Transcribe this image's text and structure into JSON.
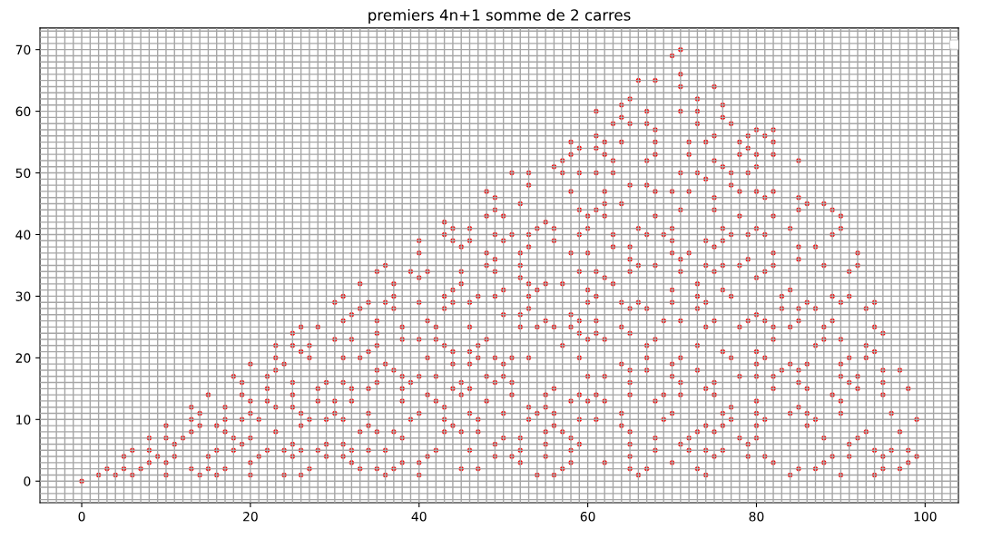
{
  "chart_data": {
    "type": "scatter",
    "title": "premiers 4n+1 somme de 2 carres",
    "xlim": [
      -4.95,
      103.95
    ],
    "ylim": [
      -3.5,
      73.5
    ],
    "xticks": [
      0,
      20,
      40,
      60,
      80,
      100
    ],
    "yticks": [
      0,
      10,
      20,
      30,
      40,
      50,
      60,
      70
    ],
    "grid": true,
    "marker": "circle",
    "series": [
      {
        "color": "#ff0000",
        "x": [
          0,
          2,
          3,
          4,
          5,
          5,
          6,
          6,
          7,
          8,
          8,
          8,
          9,
          10,
          10,
          10,
          10,
          11,
          11,
          12,
          13,
          13,
          13,
          13,
          14,
          14,
          14,
          15,
          15,
          15,
          16,
          16,
          16,
          17,
          17,
          17,
          17,
          18,
          18,
          18,
          19,
          19,
          19,
          19,
          20,
          20,
          20,
          20,
          20,
          20,
          21,
          21,
          22,
          22,
          22,
          22,
          23,
          23,
          23,
          23,
          23,
          24,
          24,
          24,
          25,
          25,
          25,
          25,
          25,
          25,
          25,
          26,
          26,
          26,
          26,
          26,
          26,
          27,
          27,
          27,
          27,
          28,
          28,
          28,
          28,
          29,
          29,
          29,
          29,
          30,
          30,
          30,
          30,
          31,
          31,
          31,
          31,
          31,
          31,
          31,
          32,
          32,
          32,
          32,
          32,
          32,
          33,
          33,
          33,
          33,
          33,
          34,
          34,
          34,
          34,
          34,
          34,
          35,
          35,
          35,
          35,
          35,
          35,
          35,
          35,
          36,
          36,
          36,
          36,
          36,
          37,
          37,
          37,
          37,
          37,
          37,
          38,
          38,
          38,
          38,
          38,
          38,
          38,
          39,
          39,
          39,
          40,
          40,
          40,
          40,
          40,
          40,
          40,
          40,
          40,
          41,
          41,
          41,
          41,
          41,
          42,
          42,
          42,
          42,
          42,
          43,
          43,
          43,
          43,
          43,
          43,
          43,
          43,
          44,
          44,
          44,
          44,
          44,
          44,
          44,
          44,
          45,
          45,
          45,
          45,
          45,
          45,
          45,
          46,
          46,
          46,
          46,
          46,
          46,
          46,
          46,
          46,
          47,
          47,
          47,
          47,
          47,
          47,
          48,
          48,
          48,
          48,
          48,
          48,
          48,
          49,
          49,
          49,
          49,
          49,
          49,
          49,
          49,
          49,
          49,
          50,
          50,
          50,
          50,
          50,
          50,
          50,
          50,
          51,
          51,
          51,
          51,
          51,
          51,
          52,
          52,
          52,
          52,
          52,
          52,
          52,
          52,
          52,
          53,
          53,
          53,
          53,
          53,
          53,
          53,
          53,
          53,
          53,
          54,
          54,
          54,
          54,
          54,
          55,
          55,
          55,
          55,
          55,
          55,
          55,
          55,
          56,
          56,
          56,
          56,
          56,
          56,
          56,
          56,
          57,
          57,
          57,
          57,
          57,
          57,
          58,
          58,
          58,
          58,
          58,
          58,
          58,
          58,
          58,
          58,
          59,
          59,
          59,
          59,
          59,
          59,
          59,
          59,
          59,
          59,
          59,
          60,
          60,
          60,
          60,
          60,
          60,
          60,
          60,
          61,
          61,
          61,
          61,
          61,
          61,
          61,
          61,
          61,
          61,
          61,
          62,
          62,
          62,
          62,
          62,
          62,
          62,
          62,
          62,
          62,
          63,
          63,
          63,
          63,
          63,
          63,
          64,
          64,
          64,
          64,
          64,
          64,
          64,
          64,
          64,
          65,
          65,
          65,
          65,
          65,
          65,
          65,
          65,
          65,
          65,
          65,
          65,
          65,
          65,
          65,
          66,
          66,
          66,
          66,
          66,
          67,
          67,
          67,
          67,
          67,
          67,
          67,
          67,
          67,
          67,
          68,
          68,
          68,
          68,
          68,
          68,
          68,
          68,
          68,
          68,
          68,
          69,
          69,
          69,
          69,
          70,
          70,
          70,
          70,
          70,
          70,
          70,
          70,
          70,
          70,
          70,
          71,
          71,
          71,
          71,
          71,
          71,
          71,
          71,
          71,
          71,
          71,
          71,
          71,
          72,
          72,
          72,
          72,
          72,
          72,
          73,
          73,
          73,
          73,
          73,
          73,
          73,
          73,
          73,
          73,
          73,
          74,
          74,
          74,
          74,
          74,
          74,
          74,
          74,
          74,
          74,
          75,
          75,
          75,
          75,
          75,
          75,
          75,
          75,
          75,
          75,
          75,
          75,
          76,
          76,
          76,
          76,
          76,
          76,
          76,
          76,
          76,
          76,
          76,
          77,
          77,
          77,
          77,
          77,
          77,
          77,
          77,
          78,
          78,
          78,
          78,
          78,
          78,
          78,
          78,
          79,
          79,
          79,
          79,
          79,
          79,
          79,
          79,
          80,
          80,
          80,
          80,
          80,
          80,
          80,
          80,
          80,
          80,
          80,
          80,
          80,
          80,
          81,
          81,
          81,
          81,
          81,
          81,
          81,
          81,
          82,
          82,
          82,
          82,
          82,
          82,
          82,
          82,
          82,
          82,
          82,
          82,
          83,
          83,
          83,
          84,
          84,
          84,
          84,
          84,
          84,
          85,
          85,
          85,
          85,
          85,
          85,
          85,
          85,
          85,
          85,
          85,
          86,
          86,
          86,
          86,
          86,
          86,
          87,
          87,
          87,
          87,
          87,
          88,
          88,
          88,
          88,
          88,
          88,
          89,
          89,
          89,
          89,
          89,
          89,
          90,
          90,
          90,
          90,
          90,
          90,
          90,
          90,
          90,
          91,
          91,
          91,
          91,
          91,
          91,
          92,
          92,
          92,
          92,
          92,
          93,
          93,
          93,
          93,
          94,
          94,
          94,
          94,
          94,
          95,
          95,
          95,
          95,
          95,
          95,
          96,
          96,
          97,
          97,
          97,
          98,
          98,
          98,
          99,
          99
        ],
        "values": [
          0,
          1,
          2,
          1,
          2,
          4,
          1,
          5,
          2,
          3,
          5,
          7,
          4,
          1,
          3,
          7,
          9,
          4,
          6,
          7,
          2,
          8,
          10,
          12,
          1,
          9,
          11,
          2,
          4,
          14,
          1,
          5,
          9,
          2,
          8,
          10,
          12,
          5,
          7,
          17,
          6,
          10,
          14,
          16,
          1,
          3,
          7,
          11,
          13,
          19,
          4,
          10,
          5,
          13,
          15,
          17,
          8,
          12,
          18,
          20,
          22,
          1,
          5,
          19,
          4,
          6,
          12,
          14,
          16,
          22,
          24,
          1,
          5,
          9,
          11,
          21,
          25,
          2,
          10,
          20,
          22,
          5,
          13,
          15,
          25,
          4,
          6,
          10,
          16,
          11,
          13,
          23,
          29,
          4,
          6,
          10,
          16,
          20,
          26,
          30,
          3,
          5,
          13,
          15,
          23,
          27,
          2,
          8,
          20,
          28,
          32,
          5,
          9,
          11,
          15,
          21,
          29,
          2,
          8,
          16,
          18,
          22,
          24,
          26,
          34,
          1,
          5,
          19,
          29,
          35,
          2,
          8,
          18,
          28,
          30,
          32,
          3,
          7,
          13,
          15,
          17,
          23,
          25,
          10,
          16,
          34,
          1,
          3,
          11,
          17,
          23,
          29,
          33,
          37,
          39,
          4,
          14,
          20,
          26,
          34,
          5,
          13,
          17,
          23,
          25,
          8,
          10,
          12,
          22,
          28,
          30,
          40,
          42,
          9,
          15,
          19,
          21,
          29,
          31,
          39,
          41,
          2,
          8,
          14,
          16,
          32,
          34,
          38,
          5,
          11,
          15,
          19,
          21,
          25,
          29,
          39,
          41,
          2,
          8,
          10,
          20,
          22,
          30,
          13,
          17,
          23,
          35,
          37,
          43,
          47,
          4,
          6,
          16,
          20,
          30,
          34,
          36,
          40,
          44,
          46,
          7,
          11,
          17,
          19,
          27,
          31,
          39,
          43,
          4,
          14,
          16,
          20,
          40,
          50,
          3,
          5,
          7,
          25,
          27,
          33,
          35,
          37,
          45,
          10,
          12,
          20,
          28,
          30,
          32,
          38,
          40,
          48,
          50,
          1,
          11,
          25,
          31,
          41,
          4,
          6,
          8,
          12,
          14,
          26,
          32,
          42,
          1,
          9,
          11,
          15,
          25,
          39,
          41,
          51,
          2,
          8,
          22,
          32,
          50,
          52,
          3,
          5,
          7,
          13,
          25,
          27,
          37,
          47,
          53,
          55,
          6,
          10,
          14,
          20,
          24,
          26,
          34,
          40,
          44,
          50,
          54,
          13,
          17,
          23,
          29,
          31,
          37,
          41,
          43,
          10,
          14,
          24,
          26,
          30,
          34,
          44,
          50,
          54,
          56,
          60,
          3,
          13,
          17,
          23,
          33,
          43,
          45,
          47,
          53,
          55,
          32,
          38,
          40,
          50,
          52,
          58,
          9,
          11,
          19,
          25,
          29,
          45,
          55,
          59,
          61,
          2,
          4,
          6,
          8,
          14,
          16,
          18,
          24,
          28,
          34,
          36,
          38,
          48,
          58,
          62,
          1,
          29,
          35,
          41,
          65,
          2,
          18,
          20,
          22,
          28,
          40,
          48,
          52,
          58,
          60,
          5,
          7,
          13,
          23,
          35,
          43,
          47,
          53,
          55,
          57,
          65,
          10,
          14,
          26,
          40,
          3,
          11,
          17,
          19,
          29,
          31,
          37,
          39,
          41,
          47,
          69,
          6,
          14,
          16,
          20,
          26,
          34,
          36,
          44,
          50,
          60,
          64,
          66,
          70,
          5,
          7,
          37,
          47,
          53,
          55,
          2,
          8,
          18,
          22,
          28,
          30,
          32,
          50,
          58,
          60,
          62,
          1,
          5,
          9,
          15,
          25,
          29,
          35,
          39,
          49,
          55,
          4,
          8,
          14,
          16,
          26,
          34,
          38,
          44,
          46,
          52,
          56,
          64,
          5,
          9,
          11,
          21,
          31,
          35,
          39,
          41,
          51,
          59,
          61,
          10,
          12,
          20,
          30,
          40,
          48,
          50,
          58,
          7,
          17,
          25,
          35,
          43,
          47,
          53,
          55,
          4,
          6,
          26,
          36,
          40,
          50,
          54,
          56,
          7,
          9,
          11,
          13,
          17,
          19,
          21,
          27,
          33,
          41,
          47,
          51,
          53,
          57,
          4,
          10,
          20,
          26,
          34,
          40,
          46,
          56,
          3,
          15,
          17,
          23,
          25,
          35,
          37,
          43,
          47,
          53,
          55,
          57,
          18,
          28,
          30,
          1,
          11,
          19,
          25,
          31,
          41,
          2,
          12,
          16,
          18,
          26,
          28,
          36,
          38,
          44,
          46,
          52,
          9,
          11,
          15,
          19,
          29,
          45,
          2,
          10,
          22,
          28,
          38,
          3,
          7,
          23,
          25,
          35,
          45,
          4,
          14,
          26,
          30,
          40,
          44,
          1,
          11,
          13,
          17,
          19,
          23,
          29,
          41,
          43,
          4,
          6,
          16,
          20,
          30,
          34,
          7,
          15,
          17,
          35,
          37,
          8,
          20,
          22,
          28,
          1,
          5,
          21,
          25,
          29,
          2,
          4,
          14,
          16,
          18,
          24,
          5,
          11,
          2,
          8,
          18,
          3,
          5,
          15,
          4,
          10
        ]
      }
    ]
  }
}
